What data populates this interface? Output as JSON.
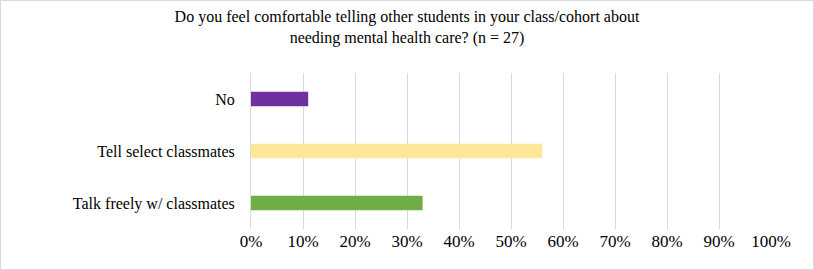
{
  "chart_data": {
    "type": "bar",
    "orientation": "horizontal",
    "title": "Do you feel comfortable telling other students in your class/cohort about\nneeding mental health care? (n = 27)",
    "categories": [
      "No",
      "Tell select classmates",
      "Talk freely w/ classmates"
    ],
    "values": [
      11,
      56,
      33
    ],
    "colors": [
      "#7030a0",
      "#ffe699",
      "#70ad47"
    ],
    "xlim": [
      0,
      100
    ],
    "xticks": [
      {
        "value": 0,
        "label": "0%"
      },
      {
        "value": 10,
        "label": "10%"
      },
      {
        "value": 20,
        "label": "20%"
      },
      {
        "value": 30,
        "label": "30%"
      },
      {
        "value": 40,
        "label": "40%"
      },
      {
        "value": 50,
        "label": "50%"
      },
      {
        "value": 60,
        "label": "60%"
      },
      {
        "value": 70,
        "label": "70%"
      },
      {
        "value": 80,
        "label": "80%"
      },
      {
        "value": 90,
        "label": "90%"
      },
      {
        "value": 100,
        "label": "100%"
      }
    ],
    "grid": true
  }
}
